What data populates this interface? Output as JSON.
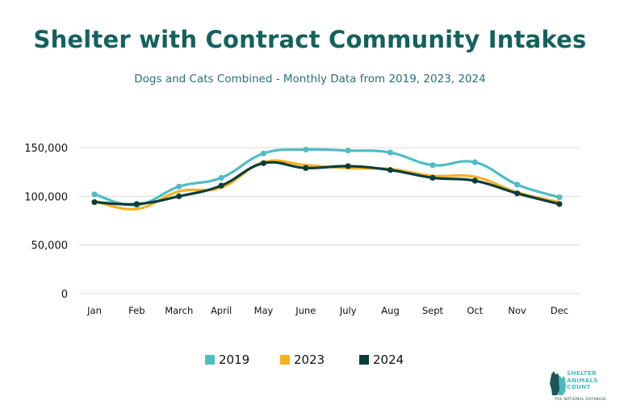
{
  "chart_data": {
    "type": "line",
    "title": "Shelter with Contract Community Intakes",
    "subtitle": "Dogs and Cats Combined - Monthly Data from 2019, 2023, 2024",
    "categories": [
      "Jan",
      "Feb",
      "March",
      "April",
      "May",
      "June",
      "July",
      "Aug",
      "Sept",
      "Oct",
      "Nov",
      "Dec"
    ],
    "series": [
      {
        "name": "2019",
        "color": "#4fbdc3",
        "values": [
          102000,
          91000,
          110000,
          119000,
          144000,
          148000,
          147000,
          145000,
          132000,
          135000,
          112000,
          99000
        ]
      },
      {
        "name": "2023",
        "color": "#f5b021",
        "values": [
          95000,
          87000,
          105000,
          109000,
          135000,
          132000,
          129000,
          128000,
          121000,
          120000,
          104000,
          94000
        ]
      },
      {
        "name": "2024",
        "color": "#0b3d3b",
        "values": [
          94000,
          92000,
          100000,
          111000,
          134000,
          129000,
          131000,
          127000,
          119000,
          116000,
          103000,
          92000
        ]
      }
    ],
    "yticks": [
      0,
      50000,
      100000,
      150000
    ],
    "ytick_labels": [
      "0",
      "50,000",
      "100,000",
      "150,000"
    ],
    "ylim": [
      0,
      150000
    ],
    "grid": true,
    "legend_position": "bottom"
  },
  "logo": {
    "line1": "SHELTER",
    "line2": "ANIMALS",
    "line3": "COUNT",
    "tagline": "THE NATIONAL DATABASE"
  }
}
